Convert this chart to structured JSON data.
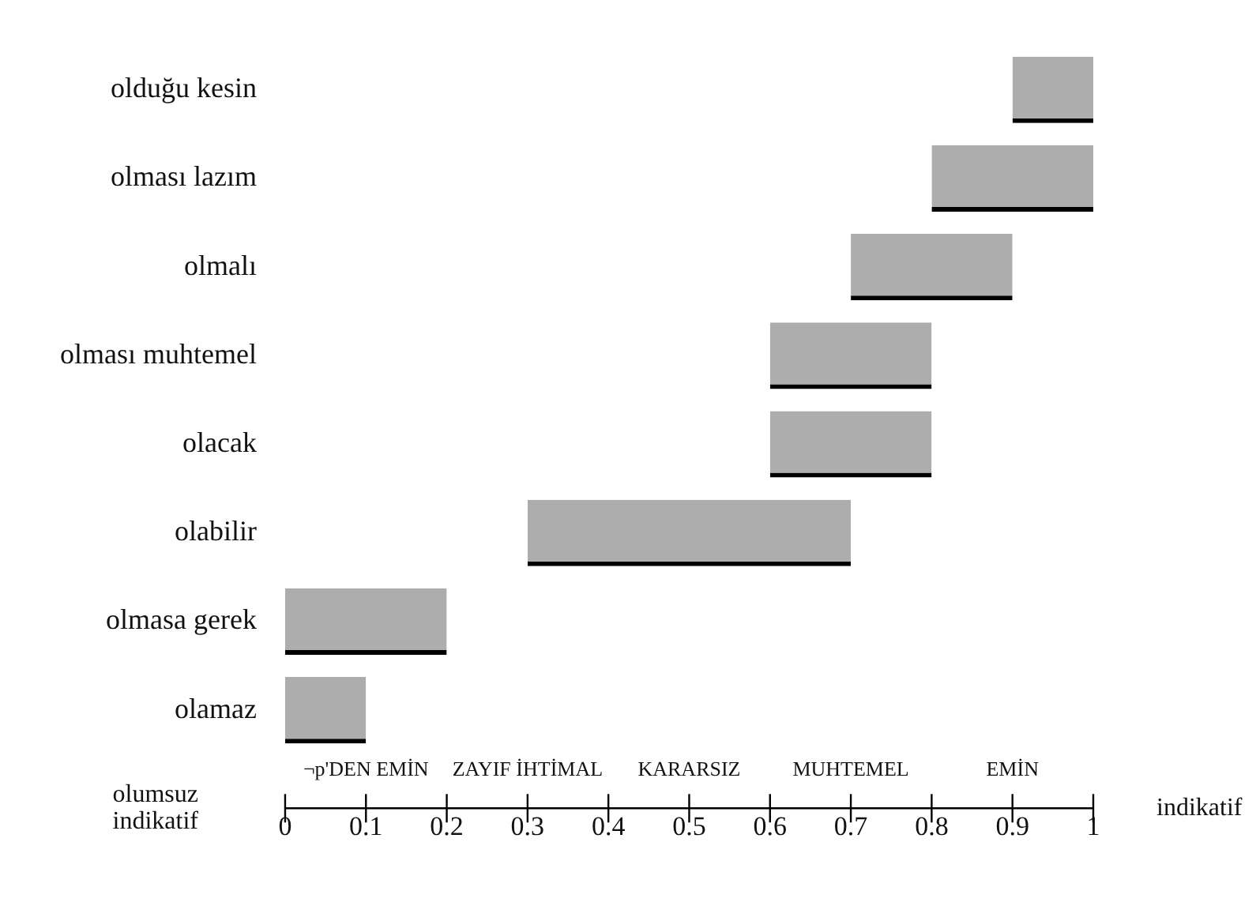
{
  "chart_data": {
    "type": "bar",
    "orientation": "horizontal",
    "categories": [
      "olduğu kesin",
      "olması lazım",
      "olmalı",
      "olması muhtemel",
      "olacak",
      "olabilir",
      "olmasa gerek",
      "olamaz"
    ],
    "base": [
      0.9,
      0.8,
      0.7,
      0.6,
      0.6,
      0.3,
      0,
      0
    ],
    "values": [
      0.1,
      0.2,
      0.2,
      0.2,
      0.2,
      0.4,
      0.2,
      0.1
    ],
    "color": "#adadad",
    "xlim": [
      0,
      1
    ],
    "xticks": [
      0,
      0.1,
      0.2,
      0.3,
      0.4,
      0.5,
      0.6,
      0.7,
      0.8,
      0.9,
      1
    ],
    "xlabel": "indikatif",
    "annotations": [
      "¬p'DEN EMİN",
      "ZAYIF İHTİMAL",
      "KARARSIZ",
      "MUHTEMEL",
      "EMİN",
      "olumsuz indikatif"
    ]
  }
}
